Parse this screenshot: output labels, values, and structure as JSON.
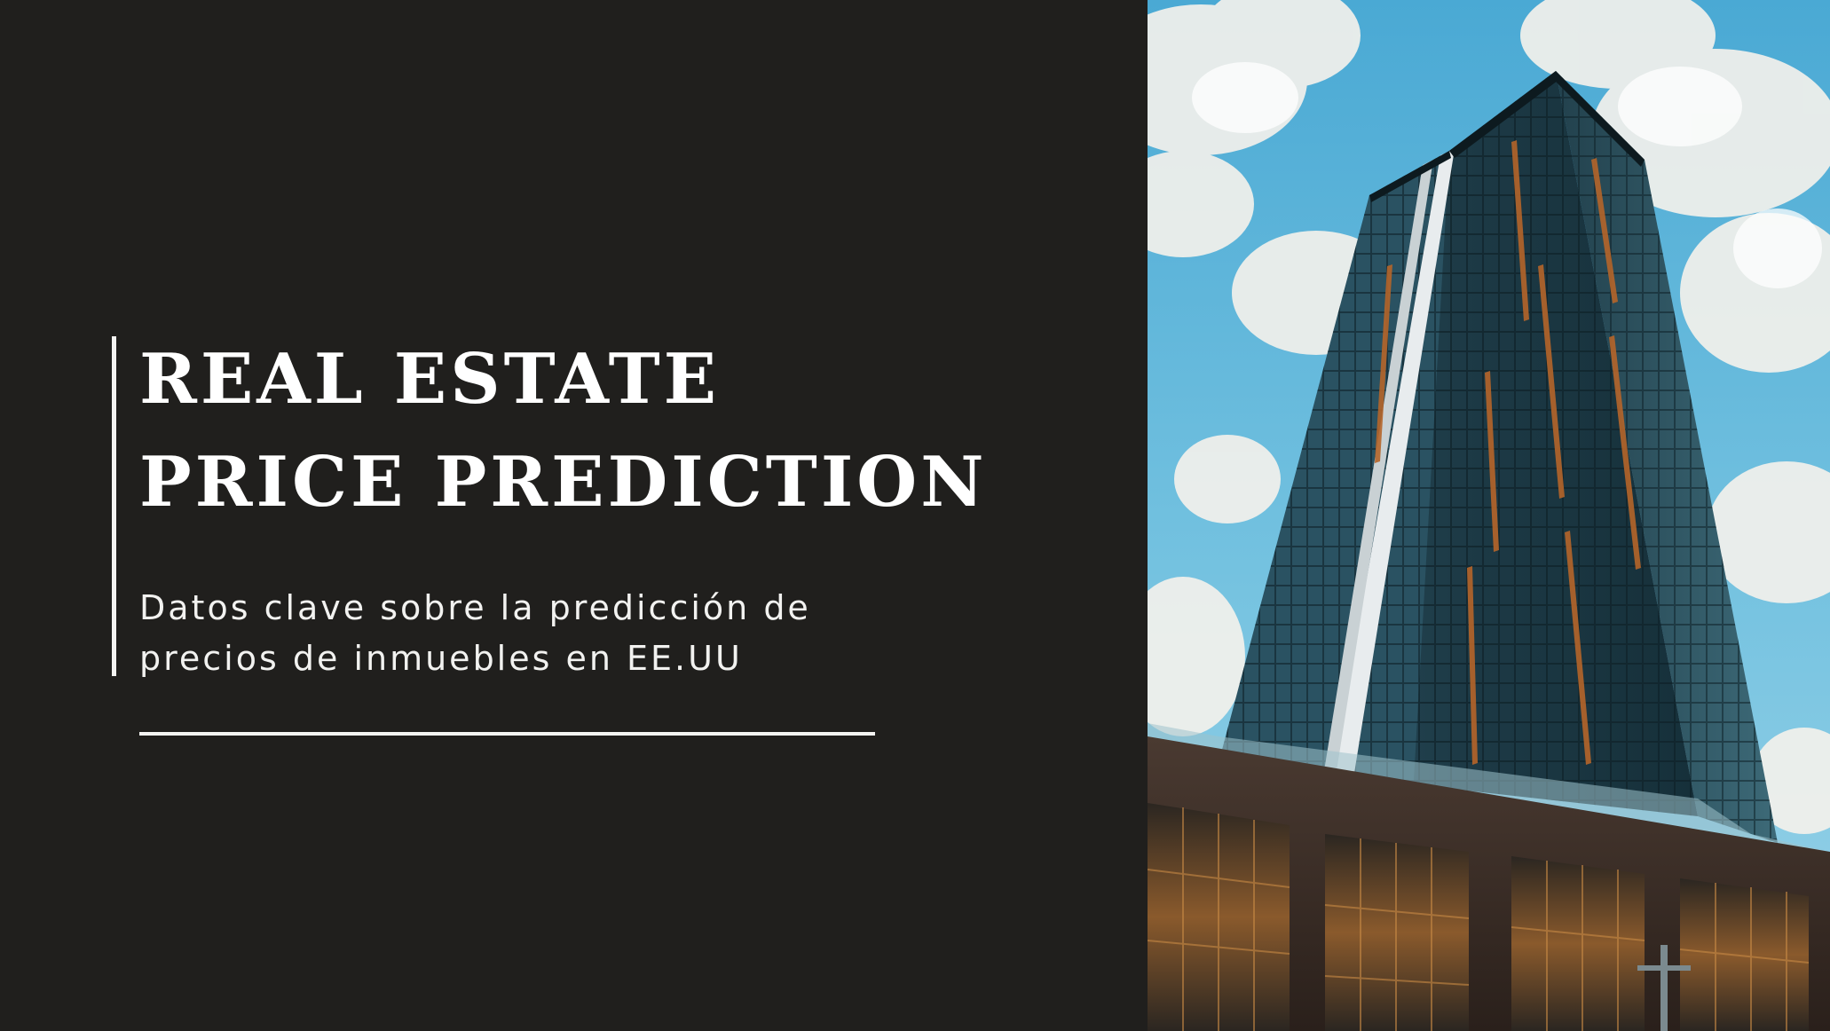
{
  "slide": {
    "title_line1": "REAL ESTATE",
    "title_line2": "PRICE PREDICTION",
    "subtitle_line1": "Datos clave sobre la predicción de",
    "subtitle_line2": "precios de inmuebles en EE.UU"
  },
  "colors": {
    "background": "#201f1d",
    "text": "#ffffff",
    "accent": "#f4f4f2",
    "sky": "#5fb3d6",
    "glass": "#1f3f4d",
    "copper": "#b5652a",
    "podium": "#3a2c25"
  },
  "image": {
    "icon": "skyscraper-photo"
  }
}
